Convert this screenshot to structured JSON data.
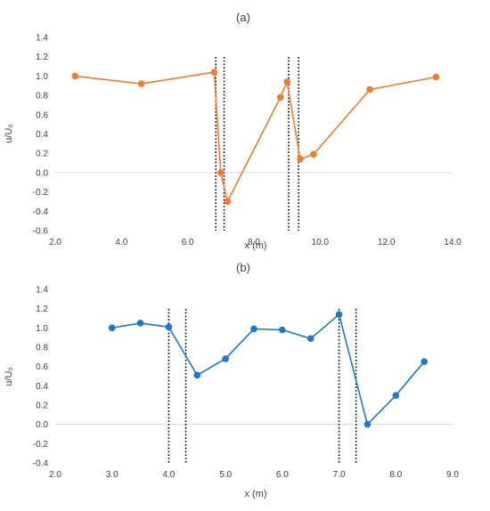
{
  "chart_data": [
    {
      "type": "line",
      "title": "(a)",
      "xlabel": "x (m)",
      "ylabel": "u/U₀",
      "xlim": [
        2.0,
        14.0
      ],
      "ylim": [
        -0.6,
        1.4
      ],
      "xticks": [
        "2.0",
        "4.0",
        "6.0",
        "8.0",
        "10.0",
        "12.0",
        "14.0"
      ],
      "yticks": [
        "-0.6",
        "-0.4",
        "-0.2",
        "0.0",
        "0.2",
        "0.4",
        "0.6",
        "0.8",
        "1.0",
        "1.2",
        "1.4"
      ],
      "grid": false,
      "color": "#ED7D31",
      "series": [
        {
          "x": [
            2.6,
            4.6,
            6.8,
            7.0,
            7.2,
            8.8,
            9.0,
            9.4,
            9.8,
            11.5,
            13.5
          ],
          "y": [
            1.0,
            0.92,
            1.04,
            0.0,
            -0.3,
            0.78,
            0.94,
            0.14,
            0.19,
            0.86,
            0.99
          ]
        }
      ],
      "vlines": [
        6.85,
        7.1,
        9.05,
        9.35
      ]
    },
    {
      "type": "line",
      "title": "(b)",
      "xlabel": "x (m)",
      "ylabel": "u/U₀",
      "xlim": [
        2.0,
        9.0
      ],
      "ylim": [
        -0.4,
        1.4
      ],
      "xticks": [
        "2.0",
        "3.0",
        "4.0",
        "5.0",
        "6.0",
        "7.0",
        "8.0",
        "9.0"
      ],
      "yticks": [
        "-0.4",
        "-0.2",
        "0.0",
        "0.2",
        "0.4",
        "0.6",
        "0.8",
        "1.0",
        "1.2",
        "1.4"
      ],
      "grid": false,
      "color": "#1F77C9",
      "series": [
        {
          "x": [
            3.0,
            3.5,
            4.0,
            4.5,
            5.0,
            5.5,
            6.0,
            6.5,
            7.0,
            7.5,
            8.0,
            8.5
          ],
          "y": [
            1.0,
            1.05,
            1.01,
            0.51,
            0.68,
            0.99,
            0.98,
            0.89,
            1.14,
            0.0,
            0.3,
            0.65
          ]
        }
      ],
      "vlines": [
        4.0,
        4.3,
        7.0,
        7.3
      ]
    }
  ]
}
